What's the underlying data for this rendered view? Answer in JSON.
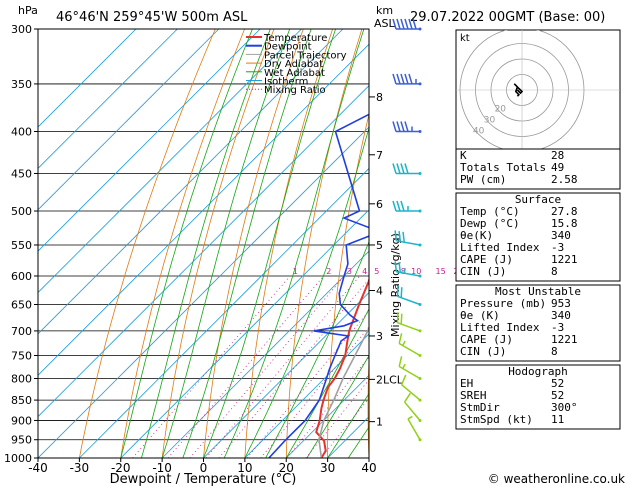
{
  "header": {
    "left_unit": "hPa",
    "location": "46°46'N  259°45'W  500m  ASL",
    "km_unit": "km",
    "asl": "ASL",
    "datetime": "29.07.2022  00GMT  (Base: 00)"
  },
  "footer": {
    "copyright": "© weatheronline.co.uk"
  },
  "colors": {
    "temperature": "#e8302c",
    "dewpoint": "#1f3fe0",
    "parcel": "#a0a0a0",
    "dry_adiabat": "#e07b12",
    "wet_adiabat": "#14a614",
    "isotherm": "#22a0d8",
    "mixing_ratio": "#cc1b8e",
    "wind_barb_high": "#3a5fd9",
    "wind_barb_mid": "#1ab5c9",
    "wind_barb_low": "#8fd116",
    "hodo_line": "#000000"
  },
  "chart_data": {
    "type": "skew-t log-p sounding",
    "title": "46°46'N  259°45'W  500m  ASL",
    "xlabel": "Dewpoint / Temperature (°C)",
    "ylabel": "hPa",
    "y2label": "km ASL",
    "y3label": "Mixing Ratio (g/kg)",
    "x_ticks": [
      -40,
      -30,
      -20,
      -10,
      0,
      10,
      20,
      30,
      40
    ],
    "xlim": [
      -40,
      40
    ],
    "pressure_ticks": [
      300,
      350,
      400,
      450,
      500,
      550,
      600,
      650,
      700,
      750,
      800,
      850,
      900,
      950,
      1000
    ],
    "ylim_hpa": [
      1000,
      300
    ],
    "km_ticks": [
      {
        "label": "8",
        "p": 363
      },
      {
        "label": "7",
        "p": 427
      },
      {
        "label": "6",
        "p": 490
      },
      {
        "label": "5",
        "p": 550
      },
      {
        "label": "4",
        "p": 625
      },
      {
        "label": "3",
        "p": 710
      },
      {
        "label": "2LCL",
        "p": 802
      },
      {
        "label": "1",
        "p": 903
      }
    ],
    "mixing_ratio_labels": [
      "1",
      "2",
      "3",
      "4",
      "5",
      "8",
      "10",
      "15",
      "20",
      "25"
    ],
    "mixing_ratio_label_p": 590,
    "legend": [
      "Temperature",
      "Dewpoint",
      "Parcel Trajectory",
      "Dry Adiabat",
      "Wet Adiabat",
      "Isotherm",
      "Mixing Ratio"
    ],
    "legend_position": "top-center",
    "skew_deg_per_log": 45,
    "series": [
      {
        "name": "Temperature",
        "points": [
          [
            1000,
            28.5
          ],
          [
            980,
            27.8
          ],
          [
            953,
            25
          ],
          [
            930,
            21
          ],
          [
            900,
            19
          ],
          [
            870,
            16.5
          ],
          [
            850,
            15
          ],
          [
            820,
            13
          ],
          [
            800,
            12.5
          ],
          [
            780,
            11.5
          ],
          [
            750,
            9.5
          ],
          [
            720,
            6.5
          ],
          [
            700,
            4.5
          ],
          [
            650,
            0.5
          ],
          [
            600,
            -3.5
          ],
          [
            550,
            -8
          ],
          [
            500,
            -13.5
          ],
          [
            450,
            -19.5
          ],
          [
            400,
            -26
          ],
          [
            350,
            -34.5
          ],
          [
            300,
            -44
          ]
        ]
      },
      {
        "name": "Dewpoint",
        "points": [
          [
            1000,
            15.8
          ],
          [
            953,
            15.5
          ],
          [
            900,
            15.5
          ],
          [
            850,
            14
          ],
          [
            800,
            10.5
          ],
          [
            780,
            9
          ],
          [
            750,
            7
          ],
          [
            720,
            5
          ],
          [
            710,
            5.5
          ],
          [
            700,
            -4
          ],
          [
            690,
            2
          ],
          [
            680,
            4
          ],
          [
            670,
            1
          ],
          [
            650,
            -4
          ],
          [
            630,
            -7
          ],
          [
            600,
            -10
          ],
          [
            580,
            -12
          ],
          [
            550,
            -17
          ],
          [
            530,
            -12
          ],
          [
            510,
            -24
          ],
          [
            500,
            -22
          ],
          [
            400,
            -47
          ],
          [
            350,
            -36
          ],
          [
            300,
            -58
          ]
        ]
      },
      {
        "name": "Parcel Trajectory",
        "points": [
          [
            1000,
            28.5
          ],
          [
            950,
            23.5
          ],
          [
            900,
            20
          ],
          [
            850,
            17.5
          ],
          [
            800,
            14.5
          ],
          [
            700,
            9
          ],
          [
            600,
            2
          ],
          [
            500,
            -6
          ],
          [
            400,
            -17
          ],
          [
            350,
            -24.5
          ],
          [
            300,
            -33
          ]
        ]
      }
    ],
    "wind_barbs": [
      {
        "p": 300,
        "dir": 270,
        "kt": 60
      },
      {
        "p": 350,
        "dir": 270,
        "kt": 55
      },
      {
        "p": 400,
        "dir": 270,
        "kt": 45
      },
      {
        "p": 450,
        "dir": 270,
        "kt": 40
      },
      {
        "p": 500,
        "dir": 270,
        "kt": 35
      },
      {
        "p": 550,
        "dir": 280,
        "kt": 30
      },
      {
        "p": 600,
        "dir": 280,
        "kt": 25
      },
      {
        "p": 650,
        "dir": 290,
        "kt": 20
      },
      {
        "p": 700,
        "dir": 290,
        "kt": 20
      },
      {
        "p": 750,
        "dir": 300,
        "kt": 15
      },
      {
        "p": 800,
        "dir": 300,
        "kt": 15
      },
      {
        "p": 850,
        "dir": 310,
        "kt": 10
      },
      {
        "p": 900,
        "dir": 320,
        "kt": 10
      },
      {
        "p": 950,
        "dir": 330,
        "kt": 5
      }
    ],
    "hodograph": {
      "unit_label": "kt",
      "ring_labels": [
        "40",
        "30",
        "20"
      ],
      "ring_speeds_kt": [
        10,
        20,
        30,
        40
      ],
      "trace_kt": [
        [
          -3,
          -4
        ],
        [
          -2,
          -3
        ],
        [
          -4,
          -1
        ],
        [
          -3,
          2
        ],
        [
          -5,
          4
        ],
        [
          -2,
          1
        ],
        [
          0,
          -1
        ],
        [
          -1,
          -2
        ],
        [
          -3,
          0
        ]
      ]
    },
    "indices": [
      {
        "label": "K",
        "value": "28"
      },
      {
        "label": "Totals Totals",
        "value": "49"
      },
      {
        "label": "PW (cm)",
        "value": "2.58"
      }
    ],
    "surface": {
      "header": "Surface",
      "rows": [
        {
          "label": "Temp (°C)",
          "value": "27.8"
        },
        {
          "label": "Dewp (°C)",
          "value": "15.8"
        },
        {
          "label": "θe(K)",
          "value": "340"
        },
        {
          "label": "Lifted Index",
          "value": "-3"
        },
        {
          "label": "CAPE (J)",
          "value": "1221"
        },
        {
          "label": "CIN (J)",
          "value": "8"
        }
      ]
    },
    "most_unstable": {
      "header": "Most Unstable",
      "rows": [
        {
          "label": "Pressure (mb)",
          "value": "953"
        },
        {
          "label": "θe (K)",
          "value": "340"
        },
        {
          "label": "Lifted Index",
          "value": "-3"
        },
        {
          "label": "CAPE (J)",
          "value": "1221"
        },
        {
          "label": "CIN (J)",
          "value": "8"
        }
      ]
    },
    "hodograph_table": {
      "header": "Hodograph",
      "rows": [
        {
          "label": "EH",
          "value": "52"
        },
        {
          "label": "SREH",
          "value": "52"
        },
        {
          "label": "StmDir",
          "value": "300°"
        },
        {
          "label": "StmSpd (kt)",
          "value": "11"
        }
      ]
    }
  }
}
